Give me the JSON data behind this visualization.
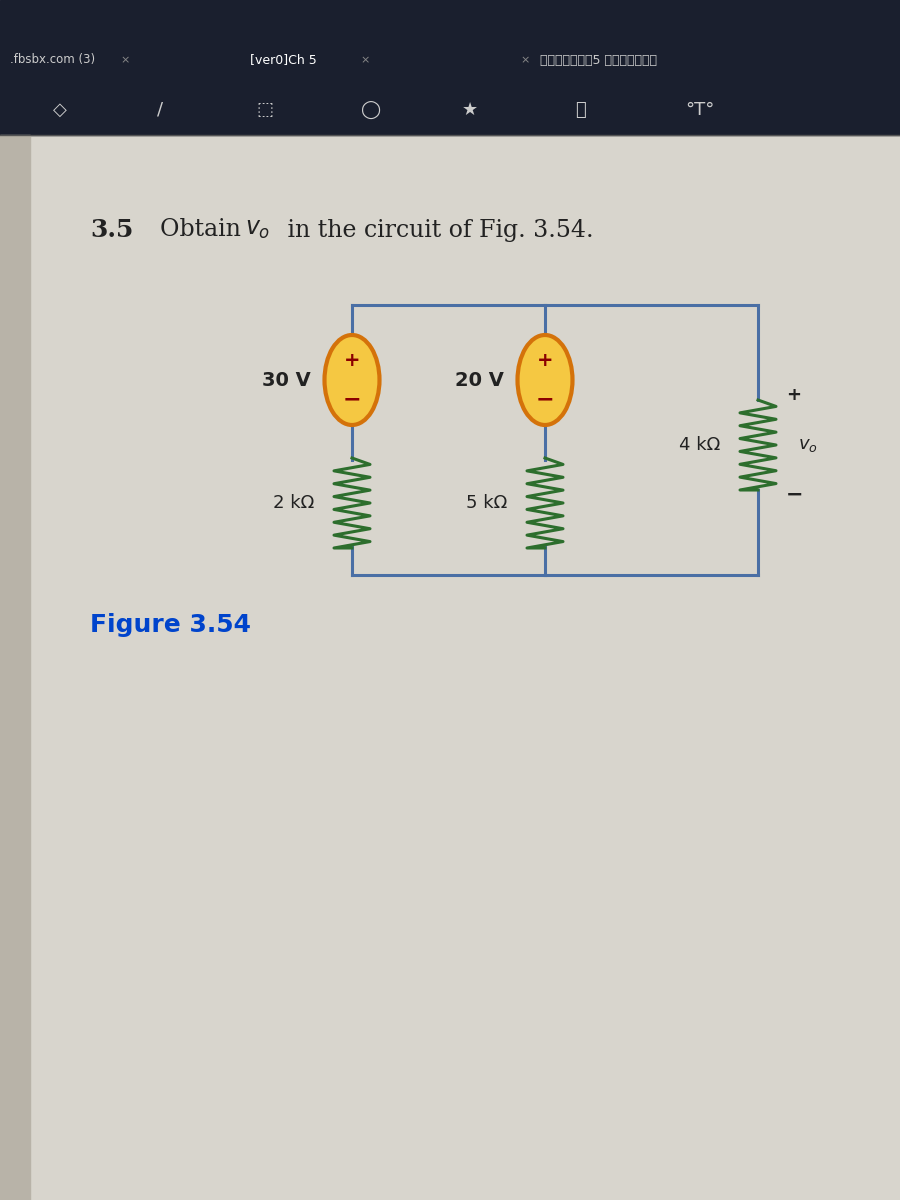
{
  "bg_top_color": "#1a1f2e",
  "bg_page_color": "#d8d5cd",
  "toolbar_color": "#1a1f2e",
  "tab_row1": [
    ".fbsbx.com (3)",
    "×",
    "[ver0]Ch 5",
    "×",
    "การบ้าน5 เจนจิรา"
  ],
  "title_number": "3.5",
  "title_text": "Obtain ",
  "title_v": "v",
  "title_sub": "o",
  "title_rest": " in the circuit of Fig. 3.54.",
  "figure_label": "Figure 3.54",
  "circuit": {
    "wire_color": "#4a6fa5",
    "resistor_color": "#2d6e2d",
    "source_fill": "#f5c842",
    "source_border": "#d4720a",
    "source_border_inner": "#c85a00",
    "left_source_label": "30 V",
    "middle_source_label": "20 V",
    "left_res_label": "2 kΩ",
    "middle_res_label": "5 kΩ",
    "right_res_label": "4 kΩ",
    "vo_label": "v₀"
  },
  "figsize": [
    9.0,
    12.0
  ],
  "dpi": 100
}
